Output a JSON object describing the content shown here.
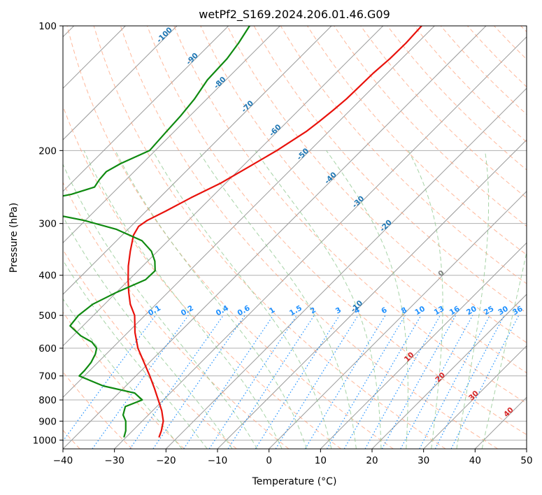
{
  "chart_data": {
    "type": "line",
    "chart_kind": "skew-T log-P sounding",
    "title": "wetPf2_S169.2024.206.01.46.G09",
    "xlabel": "Temperature (°C)",
    "ylabel": "Pressure (hPa)",
    "xlim": [
      -40,
      50
    ],
    "ylim": [
      1050,
      100
    ],
    "y_scale": "log",
    "skew": 35,
    "grid": true,
    "x_ticks": [
      -40,
      -30,
      -20,
      -10,
      0,
      10,
      20,
      30,
      40,
      50
    ],
    "y_ticks": [
      100,
      200,
      300,
      400,
      500,
      600,
      700,
      800,
      900,
      1000
    ],
    "colors": {
      "temperature": "#e8120c",
      "dewpoint": "#0f8a10",
      "isotherm": "#9a9a9a",
      "dry_adiabat": "#ffa07a",
      "moist_adiabat": "#90c890",
      "mixing_ratio": "#1e90ff",
      "isotherm_label": "#1f77b4",
      "adiabat_label": "#d62728",
      "zero_label": "#808080",
      "boundary": "#d2b48c"
    },
    "isotherm_labels": [
      -100,
      -90,
      -80,
      -70,
      -60,
      -50,
      -40,
      -30,
      -20,
      -10,
      0,
      10,
      20,
      30,
      40
    ],
    "mixing_ratio_labels": [
      "0.1",
      "0.2",
      "0.4",
      "0.6",
      "1",
      "1.5",
      "2",
      "3",
      "4",
      "6",
      "8",
      "10",
      "13",
      "16",
      "20",
      "25",
      "30",
      "36"
    ],
    "series": [
      {
        "key": "temperature",
        "pressure": [
          985,
          950,
          900,
          850,
          800,
          750,
          700,
          650,
          600,
          550,
          500,
          470,
          440,
          410,
          380,
          350,
          320,
          305,
          295,
          280,
          260,
          240,
          220,
          200,
          180,
          170,
          160,
          150,
          140,
          130,
          120,
          110,
          100
        ],
        "values": [
          -23.6,
          -24.4,
          -25.9,
          -28.2,
          -31.0,
          -34.0,
          -37.3,
          -41.0,
          -45.0,
          -48.6,
          -52.0,
          -55.0,
          -57.6,
          -60.2,
          -62.8,
          -65.3,
          -67.8,
          -68.5,
          -68.0,
          -66.2,
          -63.9,
          -61.0,
          -58.8,
          -56.4,
          -54.4,
          -53.8,
          -53.3,
          -52.9,
          -52.8,
          -52.7,
          -52.3,
          -52.2,
          -52.5
        ]
      },
      {
        "key": "dewpoint",
        "pressure": [
          985,
          950,
          900,
          870,
          830,
          800,
          770,
          740,
          700,
          680,
          650,
          620,
          600,
          580,
          560,
          530,
          500,
          470,
          440,
          410,
          390,
          370,
          350,
          330,
          310,
          295,
          285,
          278,
          272,
          268,
          262,
          255,
          245,
          235,
          225,
          215,
          200,
          180,
          165,
          150,
          135,
          120,
          110,
          100
        ],
        "values": [
          -30.4,
          -31.3,
          -33.2,
          -34.9,
          -36.1,
          -34.1,
          -36.9,
          -44.4,
          -51.0,
          -51.0,
          -51.3,
          -52.1,
          -53.0,
          -55.1,
          -58.5,
          -62.5,
          -62.9,
          -62.3,
          -60.0,
          -56.8,
          -56.7,
          -58.6,
          -61.2,
          -65.1,
          -72.2,
          -80.2,
          -87.4,
          -92.4,
          -94.3,
          -93.8,
          -91.6,
          -87.8,
          -84.7,
          -85.2,
          -85.4,
          -84.2,
          -81.1,
          -81.5,
          -81.8,
          -82.4,
          -83.6,
          -83.9,
          -84.7,
          -85.9
        ]
      }
    ]
  }
}
